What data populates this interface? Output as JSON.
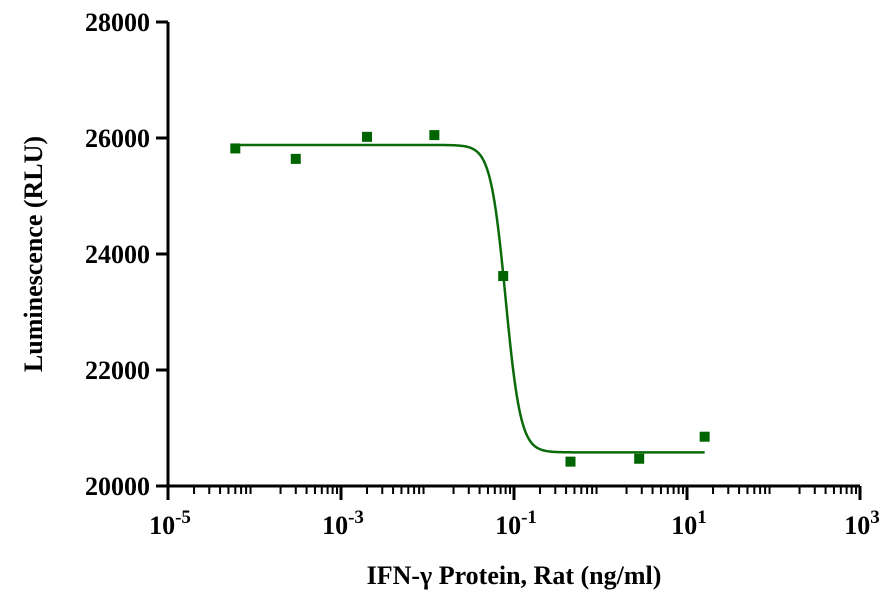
{
  "chart_data": {
    "type": "scatter",
    "xlabel": "IFN-γ Protein, Rat (ng/ml)",
    "ylabel": "Luminescence (RLU)",
    "xscale": "log10",
    "xlim": [
      1e-05,
      1000
    ],
    "ylim": [
      20000,
      28000
    ],
    "x_ticks": [
      {
        "base": "10",
        "exp": "-5"
      },
      {
        "base": "10",
        "exp": "-3"
      },
      {
        "base": "10",
        "exp": "-1"
      },
      {
        "base": "10",
        "exp": "1"
      },
      {
        "base": "10",
        "exp": "3"
      }
    ],
    "y_ticks": [
      "20000",
      "22000",
      "24000",
      "26000",
      "28000"
    ],
    "marker_color": "#006400",
    "line_color": "#0a6a0a",
    "grid": false,
    "points": [
      {
        "x": 6e-05,
        "y": 25820
      },
      {
        "x": 0.0003,
        "y": 25640
      },
      {
        "x": 0.002,
        "y": 26020
      },
      {
        "x": 0.012,
        "y": 26050
      },
      {
        "x": 0.075,
        "y": 23620
      },
      {
        "x": 0.45,
        "y": 20420
      },
      {
        "x": 2.8,
        "y": 20470
      },
      {
        "x": 16,
        "y": 20850
      }
    ],
    "fit": {
      "model": "4PL",
      "top": 25880,
      "bottom": 20580,
      "ec50": 0.08,
      "hill": 5,
      "x_range": [
        6e-05,
        16
      ]
    }
  }
}
